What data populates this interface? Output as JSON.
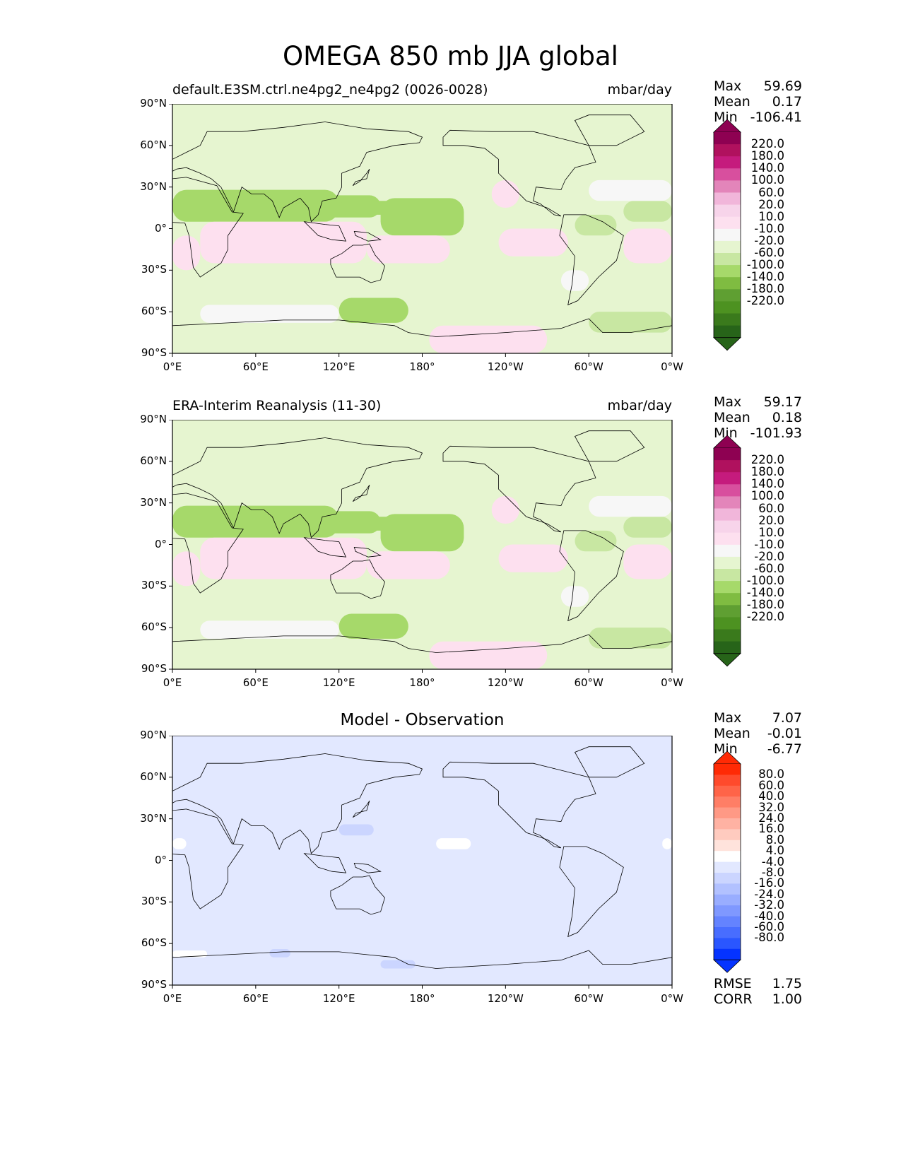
{
  "figure_title": "OMEGA 850 mb JJA global",
  "lat_ticks": [
    "90°N",
    "60°N",
    "30°N",
    "0°",
    "30°S",
    "60°S",
    "90°S"
  ],
  "lon_ticks": [
    "0°E",
    "60°E",
    "120°E",
    "180°",
    "120°W",
    "60°W",
    "0°W"
  ],
  "panels": [
    {
      "title_left": "default.E3SM.ctrl.ne4pg2_ne4pg2 (0026-0028)",
      "title_right": "mbar/day",
      "title_center": "",
      "stats": [
        {
          "label": "Max",
          "value": "59.69"
        },
        {
          "label": "Mean",
          "value": "0.17"
        },
        {
          "label": "Min",
          "value": "-106.41"
        }
      ],
      "extra_stats": [],
      "colorbar": {
        "labels": [
          "220.0",
          "180.0",
          "140.0",
          "100.0",
          "60.0",
          "20.0",
          "10.0",
          "-10.0",
          "-20.0",
          "-60.0",
          "-100.0",
          "-140.0",
          "-180.0",
          "-220.0"
        ],
        "colors": [
          "#8e0152",
          "#b0115e",
          "#c51b7d",
          "#d84f9e",
          "#e385ba",
          "#f1b6da",
          "#f7d4ea",
          "#fde0ef",
          "#f7f7f7",
          "#e6f5d0",
          "#c8e7a2",
          "#a6d96a",
          "#7fbc41",
          "#5f9f32",
          "#4d9221",
          "#3a7a1c",
          "#276419"
        ],
        "top_color": "#8e0152",
        "bottom_color": "#276419"
      }
    },
    {
      "title_left": "ERA-Interim Reanalysis (11-30)",
      "title_right": "mbar/day",
      "title_center": "",
      "stats": [
        {
          "label": "Max",
          "value": "59.17"
        },
        {
          "label": "Mean",
          "value": "0.18"
        },
        {
          "label": "Min",
          "value": "-101.93"
        }
      ],
      "extra_stats": [],
      "colorbar": {
        "labels": [
          "220.0",
          "180.0",
          "140.0",
          "100.0",
          "60.0",
          "20.0",
          "10.0",
          "-10.0",
          "-20.0",
          "-60.0",
          "-100.0",
          "-140.0",
          "-180.0",
          "-220.0"
        ],
        "colors": [
          "#8e0152",
          "#b0115e",
          "#c51b7d",
          "#d84f9e",
          "#e385ba",
          "#f1b6da",
          "#f7d4ea",
          "#fde0ef",
          "#f7f7f7",
          "#e6f5d0",
          "#c8e7a2",
          "#a6d96a",
          "#7fbc41",
          "#5f9f32",
          "#4d9221",
          "#3a7a1c",
          "#276419"
        ],
        "top_color": "#8e0152",
        "bottom_color": "#276419"
      }
    },
    {
      "title_left": "",
      "title_right": "",
      "title_center": "Model - Observation",
      "stats": [
        {
          "label": "Max",
          "value": "7.07"
        },
        {
          "label": "Mean",
          "value": "-0.01"
        },
        {
          "label": "Min",
          "value": "-6.77"
        }
      ],
      "extra_stats": [
        {
          "label": "RMSE",
          "value": "1.75"
        },
        {
          "label": "CORR",
          "value": "1.00"
        }
      ],
      "colorbar": {
        "labels": [
          "80.0",
          "60.0",
          "40.0",
          "32.0",
          "24.0",
          "16.0",
          "8.0",
          "4.0",
          "-4.0",
          "-8.0",
          "-16.0",
          "-24.0",
          "-32.0",
          "-40.0",
          "-60.0",
          "-80.0"
        ],
        "colors": [
          "#ff2a05",
          "#ff4a2c",
          "#ff6448",
          "#ff7e66",
          "#ff9985",
          "#ffb2a3",
          "#ffcbbf",
          "#ffe3dc",
          "#ffffff",
          "#e2e8ff",
          "#cbd5ff",
          "#b2c1ff",
          "#99adff",
          "#7f98ff",
          "#6483ff",
          "#486dff",
          "#2a56ff",
          "#0533ff"
        ],
        "top_color": "#ff2a05",
        "bottom_color": "#0533ff"
      }
    }
  ],
  "chart_data": [
    {
      "type": "heatmap",
      "title": "default.E3SM.ctrl.ne4pg2_ne4pg2 (0026-0028)",
      "units": "mbar/day",
      "x_range": [
        0,
        360
      ],
      "y_range": [
        -90,
        90
      ],
      "max": 59.69,
      "mean": 0.17,
      "min": -106.41,
      "levels": [
        -220,
        -180,
        -140,
        -100,
        -60,
        -20,
        -10,
        10,
        20,
        60,
        100,
        140,
        180,
        220
      ],
      "regions": [
        {
          "lon": [
            0,
            360
          ],
          "lat": [
            -90,
            90
          ],
          "value": 0
        },
        {
          "lon": [
            0,
            120
          ],
          "lat": [
            5,
            28
          ],
          "value": -25
        },
        {
          "lon": [
            40,
            150
          ],
          "lat": [
            8,
            24
          ],
          "value": -60
        },
        {
          "lon": [
            120,
            170
          ],
          "lat": [
            10,
            20
          ],
          "value": -55
        },
        {
          "lon": [
            150,
            210
          ],
          "lat": [
            -5,
            22
          ],
          "value": -25
        },
        {
          "lon": [
            20,
            140
          ],
          "lat": [
            -25,
            5
          ],
          "value": 25
        },
        {
          "lon": [
            0,
            20
          ],
          "lat": [
            -30,
            -5
          ],
          "value": 25
        },
        {
          "lon": [
            140,
            200
          ],
          "lat": [
            -25,
            -5
          ],
          "value": 20
        },
        {
          "lon": [
            235,
            285
          ],
          "lat": [
            -20,
            0
          ],
          "value": 20
        },
        {
          "lon": [
            325,
            360
          ],
          "lat": [
            -25,
            0
          ],
          "value": 20
        },
        {
          "lon": [
            290,
            320
          ],
          "lat": [
            -5,
            10
          ],
          "value": -20
        },
        {
          "lon": [
            325,
            360
          ],
          "lat": [
            5,
            20
          ],
          "value": -15
        },
        {
          "lon": [
            230,
            250
          ],
          "lat": [
            15,
            35
          ],
          "value": 20
        },
        {
          "lon": [
            300,
            360
          ],
          "lat": [
            20,
            35
          ],
          "value": 15
        },
        {
          "lon": [
            20,
            120
          ],
          "lat": [
            -68,
            -55
          ],
          "value": 15
        },
        {
          "lon": [
            120,
            170
          ],
          "lat": [
            -68,
            -50
          ],
          "value": -25
        },
        {
          "lon": [
            185,
            270
          ],
          "lat": [
            -90,
            -70
          ],
          "value": 25
        },
        {
          "lon": [
            300,
            360
          ],
          "lat": [
            -75,
            -60
          ],
          "value": -20
        },
        {
          "lon": [
            280,
            300
          ],
          "lat": [
            -45,
            -30
          ],
          "value": 12
        }
      ]
    },
    {
      "type": "heatmap",
      "title": "ERA-Interim Reanalysis (11-30)",
      "units": "mbar/day",
      "x_range": [
        0,
        360
      ],
      "y_range": [
        -90,
        90
      ],
      "max": 59.17,
      "mean": 0.18,
      "min": -101.93,
      "levels": [
        -220,
        -180,
        -140,
        -100,
        -60,
        -20,
        -10,
        10,
        20,
        60,
        100,
        140,
        180,
        220
      ],
      "regions": [
        {
          "lon": [
            0,
            360
          ],
          "lat": [
            -90,
            90
          ],
          "value": 0
        },
        {
          "lon": [
            0,
            120
          ],
          "lat": [
            5,
            28
          ],
          "value": -25
        },
        {
          "lon": [
            40,
            150
          ],
          "lat": [
            8,
            24
          ],
          "value": -60
        },
        {
          "lon": [
            120,
            170
          ],
          "lat": [
            10,
            20
          ],
          "value": -55
        },
        {
          "lon": [
            150,
            210
          ],
          "lat": [
            -5,
            22
          ],
          "value": -25
        },
        {
          "lon": [
            20,
            140
          ],
          "lat": [
            -25,
            5
          ],
          "value": 25
        },
        {
          "lon": [
            0,
            20
          ],
          "lat": [
            -30,
            -5
          ],
          "value": 25
        },
        {
          "lon": [
            140,
            200
          ],
          "lat": [
            -25,
            -5
          ],
          "value": 20
        },
        {
          "lon": [
            235,
            285
          ],
          "lat": [
            -20,
            0
          ],
          "value": 20
        },
        {
          "lon": [
            325,
            360
          ],
          "lat": [
            -25,
            0
          ],
          "value": 20
        },
        {
          "lon": [
            290,
            320
          ],
          "lat": [
            -5,
            10
          ],
          "value": -20
        },
        {
          "lon": [
            325,
            360
          ],
          "lat": [
            5,
            20
          ],
          "value": -15
        },
        {
          "lon": [
            230,
            250
          ],
          "lat": [
            15,
            35
          ],
          "value": 20
        },
        {
          "lon": [
            300,
            360
          ],
          "lat": [
            20,
            35
          ],
          "value": 15
        },
        {
          "lon": [
            20,
            120
          ],
          "lat": [
            -68,
            -55
          ],
          "value": 15
        },
        {
          "lon": [
            120,
            170
          ],
          "lat": [
            -68,
            -50
          ],
          "value": -25
        },
        {
          "lon": [
            185,
            270
          ],
          "lat": [
            -90,
            -70
          ],
          "value": 25
        },
        {
          "lon": [
            300,
            360
          ],
          "lat": [
            -75,
            -60
          ],
          "value": -20
        },
        {
          "lon": [
            280,
            300
          ],
          "lat": [
            -45,
            -30
          ],
          "value": 12
        }
      ]
    },
    {
      "type": "heatmap",
      "title": "Model - Observation",
      "x_range": [
        0,
        360
      ],
      "y_range": [
        -90,
        90
      ],
      "max": 7.07,
      "mean": -0.01,
      "min": -6.77,
      "rmse": 1.75,
      "corr": 1.0,
      "levels": [
        -80,
        -60,
        -40,
        -32,
        -24,
        -16,
        -8,
        -4,
        4,
        8,
        16,
        24,
        32,
        40,
        60,
        80
      ],
      "regions": [
        {
          "lon": [
            0,
            360
          ],
          "lat": [
            -90,
            90
          ],
          "value": 0
        },
        {
          "lon": [
            0,
            10
          ],
          "lat": [
            8,
            16
          ],
          "value": 5
        },
        {
          "lon": [
            120,
            145
          ],
          "lat": [
            18,
            26
          ],
          "value": -5
        },
        {
          "lon": [
            190,
            215
          ],
          "lat": [
            8,
            16
          ],
          "value": 5
        },
        {
          "lon": [
            353,
            360
          ],
          "lat": [
            8,
            16
          ],
          "value": 5
        },
        {
          "lon": [
            70,
            85
          ],
          "lat": [
            -70,
            -64
          ],
          "value": -5
        },
        {
          "lon": [
            150,
            175
          ],
          "lat": [
            -78,
            -72
          ],
          "value": -5
        },
        {
          "lon": [
            0,
            25
          ],
          "lat": [
            -70,
            -65
          ],
          "value": 5
        }
      ]
    }
  ]
}
